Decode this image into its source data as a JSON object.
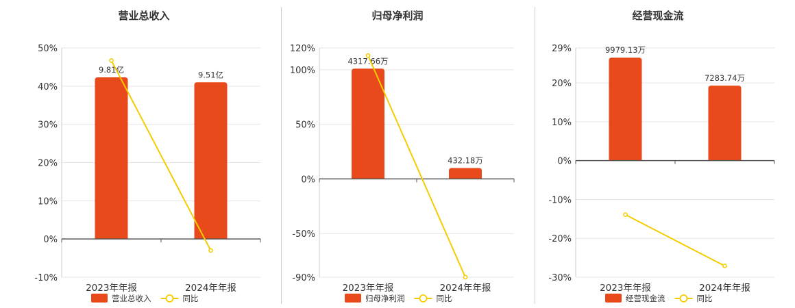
{
  "colors": {
    "bar": "#E84A1B",
    "line": "#F5CC00",
    "grid": "#e6e6e6",
    "axis": "#555555"
  },
  "chart_data": [
    {
      "type": "bar",
      "title": "营业总收入",
      "categories": [
        "2023年年报",
        "2024年年报"
      ],
      "series": [
        {
          "name": "营业总收入",
          "type": "bar",
          "values": [
            42.3,
            41.0
          ],
          "labels": [
            "9.81亿",
            "9.51亿"
          ]
        },
        {
          "name": "同比",
          "type": "line",
          "values": [
            46.7,
            -3.0
          ]
        }
      ],
      "yticks": [
        50,
        40,
        30,
        20,
        10,
        0,
        -10
      ],
      "ytick_labels": [
        "50%",
        "40%",
        "30%",
        "20%",
        "10%",
        "0%",
        "-10%"
      ],
      "ylim": [
        -10,
        50
      ],
      "legend": "bottom"
    },
    {
      "type": "bar",
      "title": "归母净利润",
      "categories": [
        "2023年年报",
        "2024年年报"
      ],
      "series": [
        {
          "name": "归母净利润",
          "type": "bar",
          "values": [
            101,
            10
          ],
          "labels": [
            "4317.66万",
            "432.18万"
          ]
        },
        {
          "name": "同比",
          "type": "line",
          "values": [
            113,
            -90
          ]
        }
      ],
      "yticks": [
        120,
        100,
        50,
        0,
        -50,
        -90
      ],
      "ytick_labels": [
        "120%",
        "100%",
        "50%",
        "0%",
        "-50%",
        "-90%"
      ],
      "ylim": [
        -90,
        120
      ],
      "legend": "bottom"
    },
    {
      "type": "bar",
      "title": "经营现金流",
      "categories": [
        "2023年年报",
        "2024年年报"
      ],
      "series": [
        {
          "name": "经营现金流",
          "type": "bar",
          "values": [
            26.5,
            19.3
          ],
          "labels": [
            "9979.13万",
            "7283.74万"
          ]
        },
        {
          "name": "同比",
          "type": "line",
          "values": [
            -13.9,
            -27.1
          ]
        }
      ],
      "yticks": [
        29,
        20,
        10,
        0,
        -10,
        -20,
        -30
      ],
      "ytick_labels": [
        "29%",
        "20%",
        "10%",
        "0%",
        "-10%",
        "-20%",
        "-30%"
      ],
      "ylim": [
        -30,
        29
      ],
      "legend": "bottom"
    }
  ]
}
